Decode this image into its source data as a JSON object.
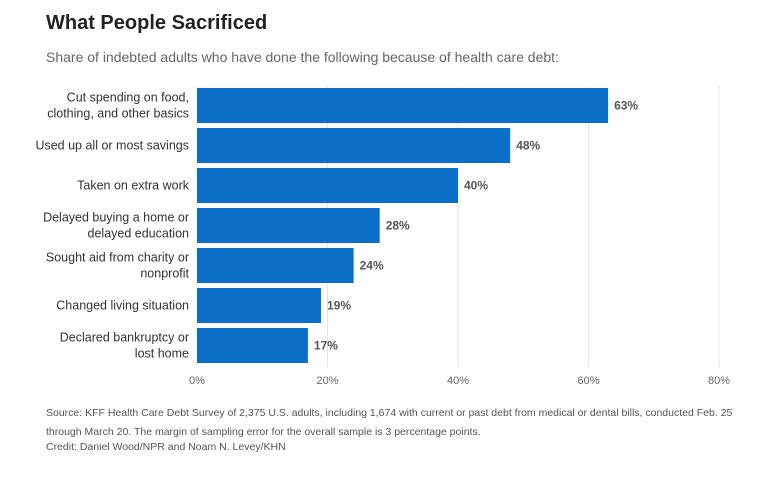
{
  "header": {
    "title": "What People Sacrificed",
    "subtitle": "Share of indebted adults who have done the following because of health care debt:"
  },
  "footer": {
    "source": "Source: KFF Health Care Debt Survey of 2,375 U.S. adults, including 1,674 with current or past debt from medical or dental bills, conducted Feb. 25 through March 20. The margin of sampling error for the overall sample is 3 percentage points.",
    "credit": "Credit: Daniel Wood/NPR and Noam N. Levey/KHN"
  },
  "chart_data": {
    "type": "bar",
    "orientation": "horizontal",
    "title": "What People Sacrificed",
    "subtitle": "Share of indebted adults who have done the following because of health care debt:",
    "categories": [
      [
        "Cut spending on food,",
        "clothing, and other basics"
      ],
      [
        "Used up all or most savings"
      ],
      [
        "Taken on extra work"
      ],
      [
        "Delayed buying a home or",
        "delayed education"
      ],
      [
        "Sought aid from charity or",
        "nonprofit"
      ],
      [
        "Changed living situation"
      ],
      [
        "Declared bankruptcy or",
        "lost home"
      ]
    ],
    "values": [
      63,
      48,
      40,
      28,
      24,
      19,
      17
    ],
    "value_labels": [
      "63%",
      "48%",
      "40%",
      "28%",
      "24%",
      "19%",
      "17%"
    ],
    "xlim": [
      0,
      80
    ],
    "x_ticks": [
      0,
      20,
      40,
      60,
      80
    ],
    "x_tick_labels": [
      "0%",
      "20%",
      "40%",
      "60%",
      "80%"
    ],
    "grid": true,
    "bar_color": "#0b6fc8",
    "grid_color": "#e4e4e4"
  }
}
